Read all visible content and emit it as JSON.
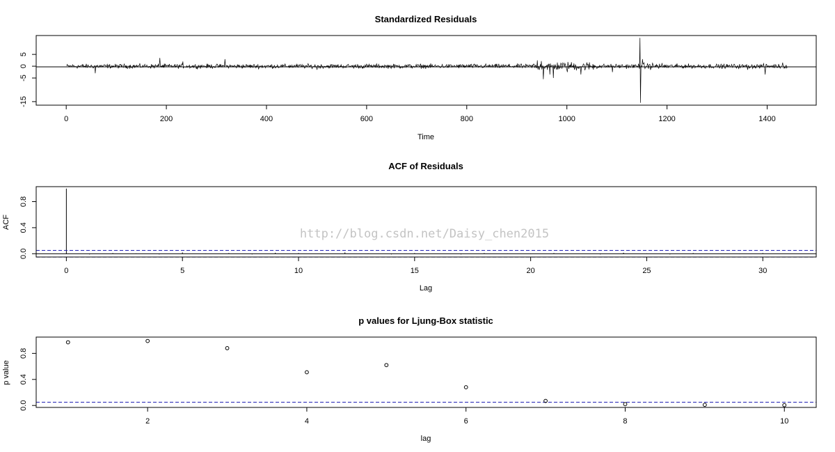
{
  "watermark": "http://blog.csdn.net/Daisy_chen2015",
  "chart_data": [
    {
      "type": "line",
      "title": "Standardized Residuals",
      "xlabel": "Time",
      "ylabel": "",
      "xlim": [
        -60,
        1498
      ],
      "ylim": [
        -16.5,
        13
      ],
      "xticks": [
        0,
        200,
        400,
        600,
        800,
        1000,
        1200,
        1400
      ],
      "yticks": [
        -15,
        -5,
        0,
        5
      ],
      "baseline": 0,
      "n": 1440,
      "spikes": [
        {
          "x": 57,
          "y": -3
        },
        {
          "x": 186,
          "y": 3.5
        },
        {
          "x": 232,
          "y": 2
        },
        {
          "x": 316,
          "y": 3
        },
        {
          "x": 500,
          "y": -1.5
        },
        {
          "x": 940,
          "y": 2.5
        },
        {
          "x": 948,
          "y": 2.2
        },
        {
          "x": 952,
          "y": -5.5
        },
        {
          "x": 965,
          "y": -3.5
        },
        {
          "x": 972,
          "y": -5
        },
        {
          "x": 1000,
          "y": -2.5
        },
        {
          "x": 1027,
          "y": -3.5
        },
        {
          "x": 1090,
          "y": -2.5
        },
        {
          "x": 1145,
          "y": 12
        },
        {
          "x": 1146,
          "y": -15.5
        },
        {
          "x": 1150,
          "y": 3
        },
        {
          "x": 1360,
          "y": -1.5
        },
        {
          "x": 1395,
          "y": -3.5
        },
        {
          "x": 1430,
          "y": 1.5
        }
      ]
    },
    {
      "type": "bar",
      "title": "ACF of Residuals",
      "xlabel": "Lag",
      "ylabel": "ACF",
      "xlim": [
        -1.3,
        32.3
      ],
      "ylim": [
        -0.05,
        1.03
      ],
      "xticks": [
        0,
        5,
        10,
        15,
        20,
        25,
        30
      ],
      "yticks": [
        0.0,
        0.4,
        0.8
      ],
      "ytick_labels": [
        "0.0",
        "0.4",
        "0.8"
      ],
      "lags": [
        0,
        1,
        2,
        3,
        4,
        5,
        6,
        7,
        8,
        9,
        10,
        11,
        12,
        13,
        14,
        15,
        16,
        17,
        18,
        19,
        20,
        21,
        22,
        23,
        24,
        25,
        26,
        27,
        28,
        29,
        30,
        31
      ],
      "values": [
        1.0,
        -0.01,
        0.01,
        0.005,
        -0.01,
        0.02,
        -0.005,
        0.01,
        -0.01,
        0.015,
        0.01,
        -0.005,
        0.02,
        0.005,
        -0.01,
        0.01,
        0.0,
        -0.01,
        0.01,
        0.005,
        -0.005,
        0.01,
        0.0,
        -0.01,
        0.015,
        0.005,
        -0.01,
        0.01,
        0.0,
        -0.005,
        0.01,
        0.0
      ],
      "conf_bound": 0.052
    },
    {
      "type": "scatter",
      "title": "p values for Ljung-Box statistic",
      "xlabel": "lag",
      "ylabel": "p value",
      "xlim": [
        0.6,
        10.4
      ],
      "ylim": [
        -0.03,
        1.05
      ],
      "xticks": [
        2,
        4,
        6,
        8,
        10
      ],
      "yticks": [
        0.0,
        0.4,
        0.8
      ],
      "ytick_labels": [
        "0.0",
        "0.4",
        "0.8"
      ],
      "x": [
        1,
        2,
        3,
        4,
        5,
        6,
        7,
        8,
        9,
        10
      ],
      "y": [
        0.97,
        0.99,
        0.88,
        0.51,
        0.62,
        0.28,
        0.07,
        0.02,
        0.01,
        0.005
      ],
      "ref_line": 0.05
    }
  ]
}
